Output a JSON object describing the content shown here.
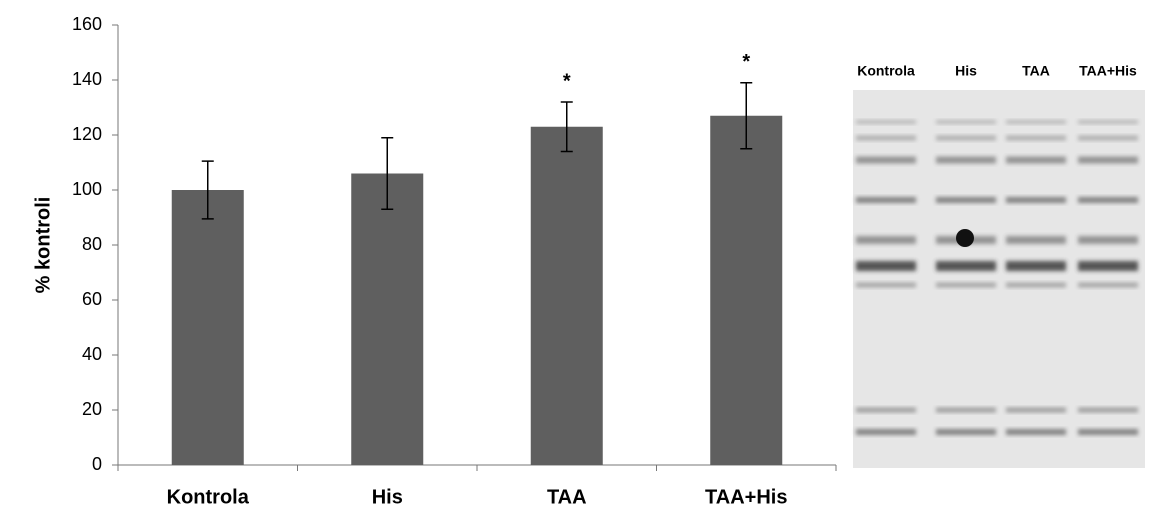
{
  "chart_data": {
    "type": "bar",
    "y_label": "% kontroli",
    "categories": [
      "Kontrola",
      "His",
      "TAA",
      "TAA+His"
    ],
    "values": [
      100,
      106,
      123,
      127
    ],
    "errors": [
      10.5,
      13,
      9,
      12
    ],
    "annotations": [
      null,
      null,
      "*",
      "*"
    ],
    "color": "#5f5f5f",
    "ylim": [
      0,
      160
    ],
    "yticks": [
      0,
      20,
      40,
      60,
      80,
      100,
      120,
      140,
      160
    ],
    "grid": false,
    "blot_lanes": [
      "Kontrola",
      "His",
      "TAA",
      "TAA+His"
    ]
  }
}
